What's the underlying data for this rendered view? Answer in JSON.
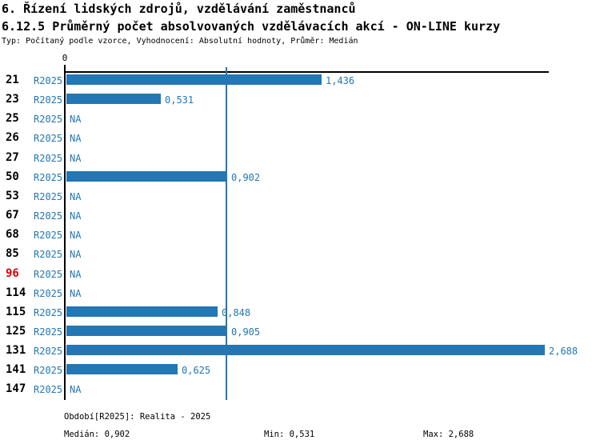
{
  "colors": {
    "bar": "#2277b4",
    "accent_text": "#2277b4",
    "median_line": "#2277b4",
    "highlight_category": "#dd0000",
    "axis": "#000000"
  },
  "header": {
    "title": "6. Řízení lidských zdrojů, vzdělávání zaměstnanců",
    "subtitle": "6.12.5 Průměrný počet absolvovaných vzdělávacích akcí - ON-LINE kurzy",
    "meta": "Typ: Počítaný podle vzorce, Vyhodnocení: Absolutní hodnoty, Průměr: Medián"
  },
  "chart_data": {
    "type": "bar",
    "orientation": "horizontal",
    "series_label": "R2025",
    "axis": {
      "tick_label": "0",
      "min": 0,
      "max": 2.72,
      "median_reference_line": 0.902,
      "grid": false
    },
    "categories": [
      "21",
      "23",
      "25",
      "26",
      "27",
      "50",
      "53",
      "67",
      "68",
      "85",
      "96",
      "114",
      "115",
      "125",
      "131",
      "141",
      "147"
    ],
    "values": [
      1.436,
      0.531,
      null,
      null,
      null,
      0.902,
      null,
      null,
      null,
      null,
      null,
      null,
      0.848,
      0.905,
      2.688,
      0.625,
      null
    ],
    "value_labels": [
      "1,436",
      "0,531",
      "NA",
      "NA",
      "NA",
      "0,902",
      "NA",
      "NA",
      "NA",
      "NA",
      "NA",
      "NA",
      "0,848",
      "0,905",
      "2,688",
      "0,625",
      "NA"
    ],
    "na_label": "NA",
    "highlighted_categories": [
      "96"
    ]
  },
  "footer": {
    "period": "Období[R2025]: Realita - 2025",
    "median": "Medián: 0,902",
    "min": "Min: 0,531",
    "max": "Max: 2,688"
  }
}
